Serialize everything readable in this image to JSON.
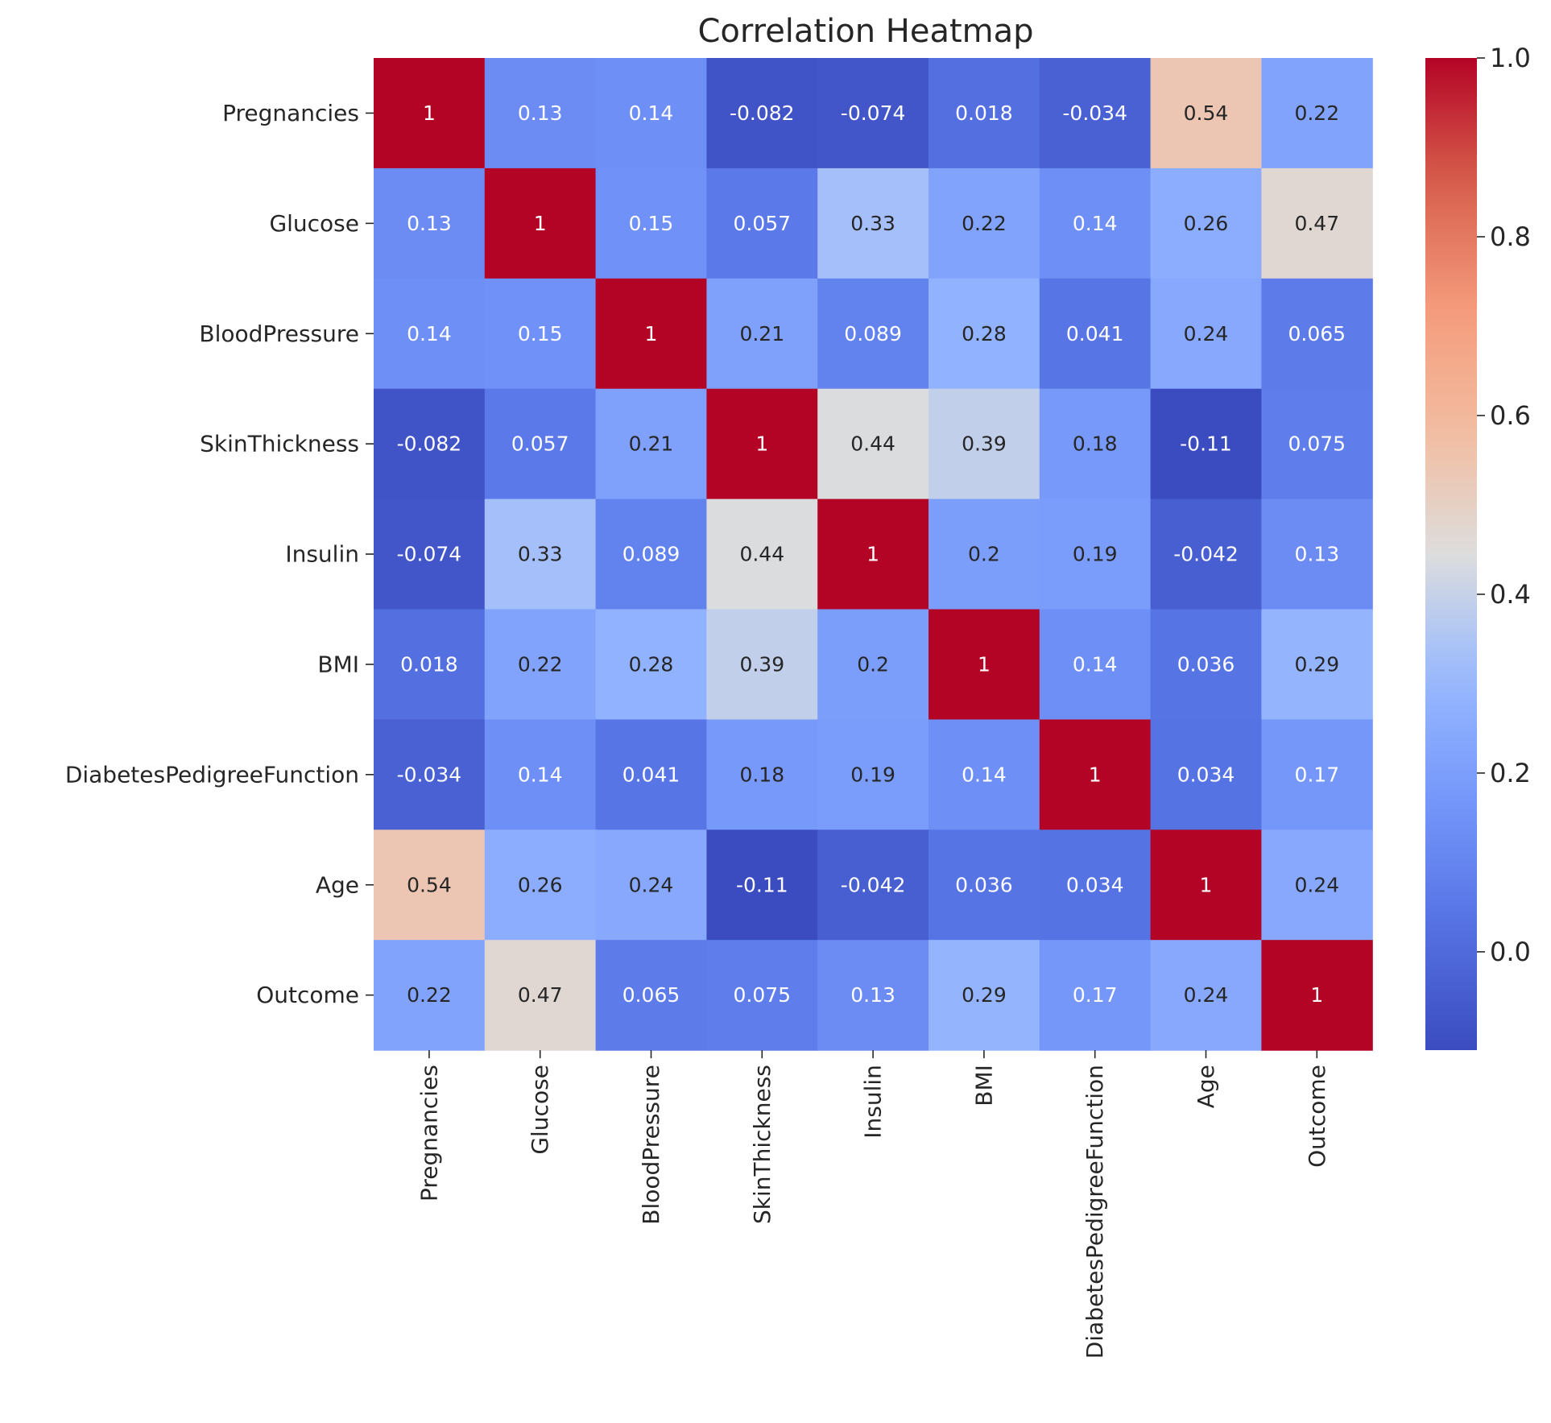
{
  "chart_data": {
    "type": "heatmap",
    "title": "Correlation Heatmap",
    "xlabel": "",
    "ylabel": "",
    "colormap": "coolwarm",
    "vmin": -0.11,
    "vmax": 1.0,
    "x_labels": [
      "Pregnancies",
      "Glucose",
      "BloodPressure",
      "SkinThickness",
      "Insulin",
      "BMI",
      "DiabetesPedigreeFunction",
      "Age",
      "Outcome"
    ],
    "y_labels": [
      "Pregnancies",
      "Glucose",
      "BloodPressure",
      "SkinThickness",
      "Insulin",
      "BMI",
      "DiabetesPedigreeFunction",
      "Age",
      "Outcome"
    ],
    "values": [
      [
        1,
        0.13,
        0.14,
        -0.082,
        -0.074,
        0.018,
        -0.034,
        0.54,
        0.22
      ],
      [
        0.13,
        1,
        0.15,
        0.057,
        0.33,
        0.22,
        0.14,
        0.26,
        0.47
      ],
      [
        0.14,
        0.15,
        1,
        0.21,
        0.089,
        0.28,
        0.041,
        0.24,
        0.065
      ],
      [
        -0.082,
        0.057,
        0.21,
        1,
        0.44,
        0.39,
        0.18,
        -0.11,
        0.075
      ],
      [
        -0.074,
        0.33,
        0.089,
        0.44,
        1,
        0.2,
        0.19,
        -0.042,
        0.13
      ],
      [
        0.018,
        0.22,
        0.28,
        0.39,
        0.2,
        1,
        0.14,
        0.036,
        0.29
      ],
      [
        -0.034,
        0.14,
        0.041,
        0.18,
        0.19,
        0.14,
        1,
        0.034,
        0.17
      ],
      [
        0.54,
        0.26,
        0.24,
        -0.11,
        -0.042,
        0.036,
        0.034,
        1,
        0.24
      ],
      [
        0.22,
        0.47,
        0.065,
        0.075,
        0.13,
        0.29,
        0.17,
        0.24,
        1
      ]
    ],
    "annotations": [
      [
        "1",
        "0.13",
        "0.14",
        "-0.082",
        "-0.074",
        "0.018",
        "-0.034",
        "0.54",
        "0.22"
      ],
      [
        "0.13",
        "1",
        "0.15",
        "0.057",
        "0.33",
        "0.22",
        "0.14",
        "0.26",
        "0.47"
      ],
      [
        "0.14",
        "0.15",
        "1",
        "0.21",
        "0.089",
        "0.28",
        "0.041",
        "0.24",
        "0.065"
      ],
      [
        "-0.082",
        "0.057",
        "0.21",
        "1",
        "0.44",
        "0.39",
        "0.18",
        "-0.11",
        "0.075"
      ],
      [
        "-0.074",
        "0.33",
        "0.089",
        "0.44",
        "1",
        "0.2",
        "0.19",
        "-0.042",
        "0.13"
      ],
      [
        "0.018",
        "0.22",
        "0.28",
        "0.39",
        "0.2",
        "1",
        "0.14",
        "0.036",
        "0.29"
      ],
      [
        "-0.034",
        "0.14",
        "0.041",
        "0.18",
        "0.19",
        "0.14",
        "1",
        "0.034",
        "0.17"
      ],
      [
        "0.54",
        "0.26",
        "0.24",
        "-0.11",
        "-0.042",
        "0.036",
        "0.034",
        "1",
        "0.24"
      ],
      [
        "0.22",
        "0.47",
        "0.065",
        "0.075",
        "0.13",
        "0.29",
        "0.17",
        "0.24",
        "1"
      ]
    ],
    "colorbar": {
      "ticks": [
        0.0,
        0.2,
        0.4,
        0.6,
        0.8,
        1.0
      ],
      "tick_labels": [
        "0.0",
        "0.2",
        "0.4",
        "0.6",
        "0.8",
        "1.0"
      ]
    }
  }
}
